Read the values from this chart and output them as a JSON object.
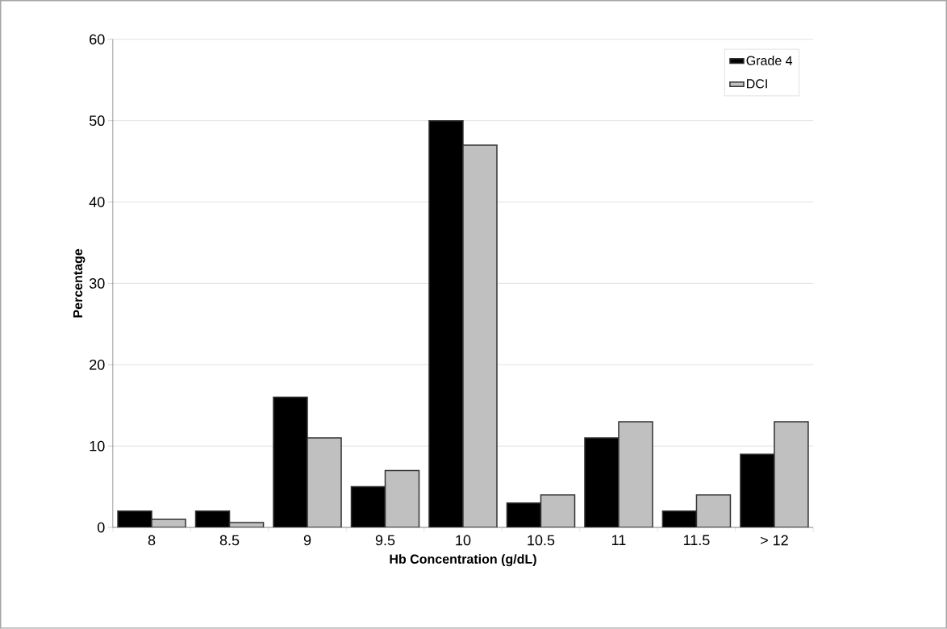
{
  "chart_data": {
    "type": "bar",
    "xlabel": "Hb Concentration (g/dL)",
    "ylabel": "Percentage",
    "categories": [
      "8",
      "8.5",
      "9",
      "9.5",
      "10",
      "10.5",
      "11",
      "11.5",
      "> 12"
    ],
    "series": [
      {
        "name": "Grade 4",
        "color": "#000000",
        "values": [
          2,
          2,
          16,
          5,
          50,
          3,
          11,
          2,
          9
        ]
      },
      {
        "name": "DCI",
        "color": "#c0c0c0",
        "values": [
          1,
          0.6,
          11,
          7,
          47,
          4,
          13,
          4,
          13
        ]
      }
    ],
    "ylim": [
      0,
      60
    ],
    "yticks": [
      0,
      10,
      20,
      30,
      40,
      50,
      60
    ],
    "grid": "y",
    "legend": "top right"
  }
}
